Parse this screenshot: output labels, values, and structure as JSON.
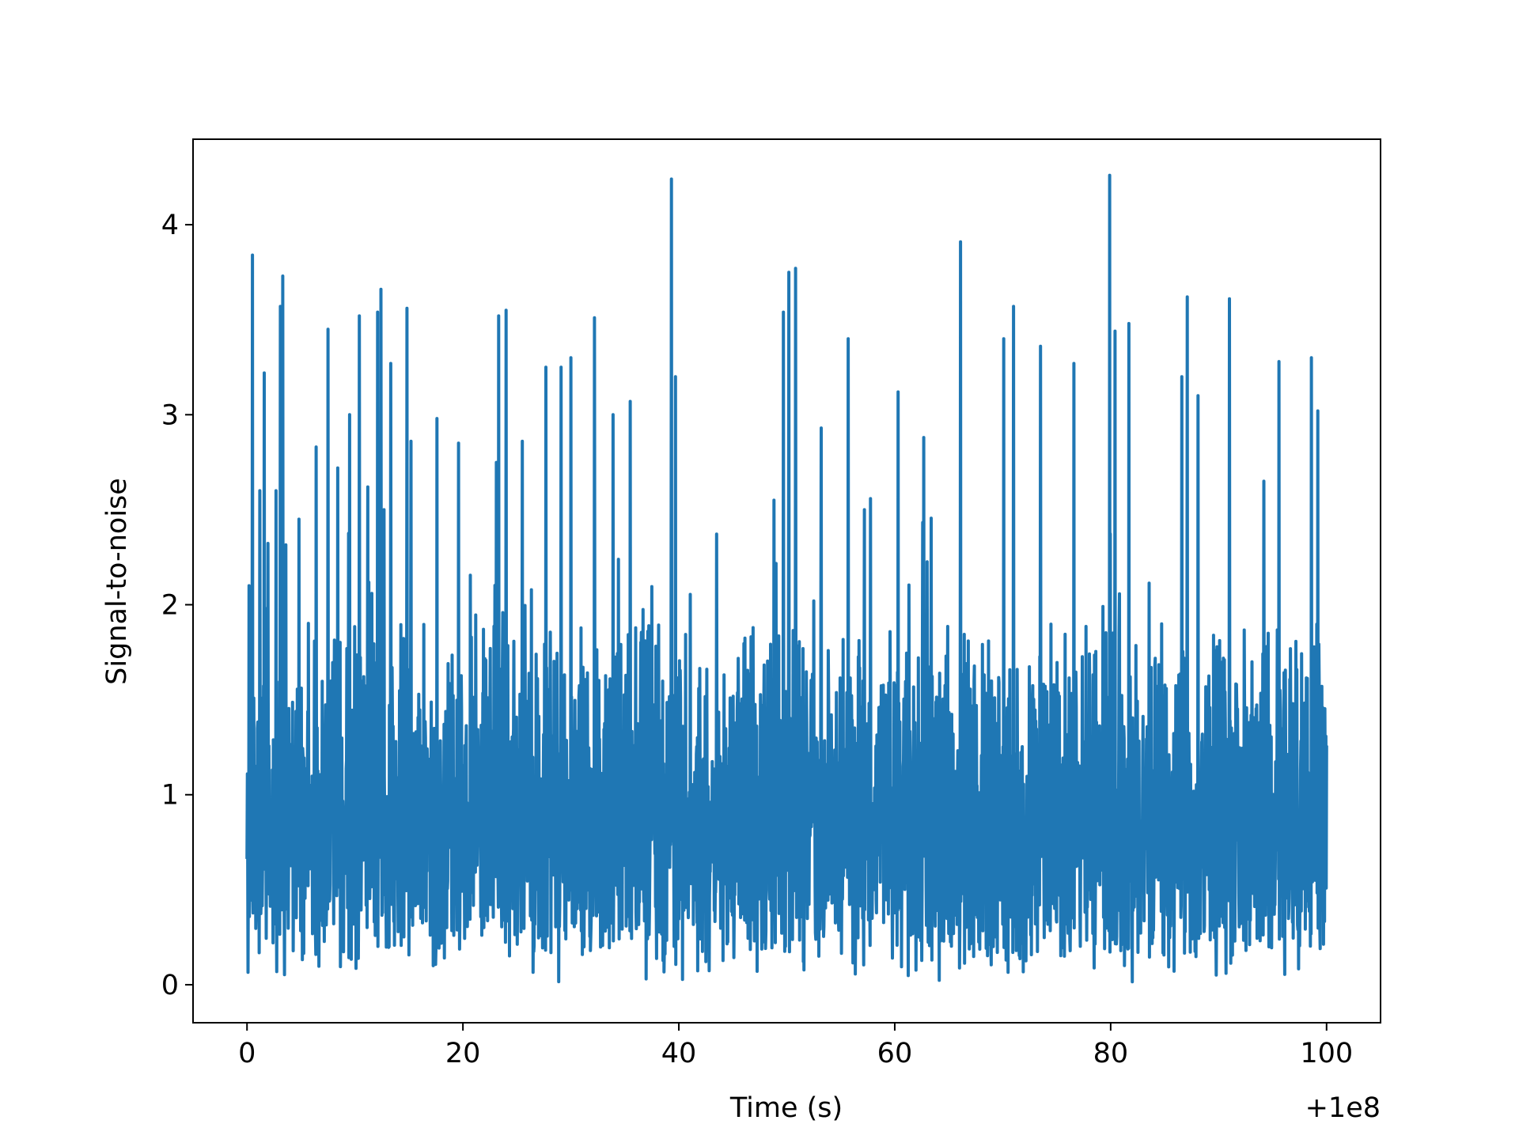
{
  "chart_data": {
    "type": "line",
    "title": "",
    "xlabel": "Time (s)",
    "ylabel": "Signal-to-noise",
    "x_offset_label": "+1e8",
    "xlim": [
      -5,
      105
    ],
    "ylim": [
      -0.2,
      4.45
    ],
    "x_ticks": [
      0,
      20,
      40,
      60,
      80,
      100
    ],
    "y_ticks": [
      0,
      1,
      2,
      3,
      4
    ],
    "grid": false,
    "legend": "none",
    "series": [
      {
        "color": "#1f77b4",
        "noise_floor": 0.0,
        "noise_typical_max": 1.9,
        "x": [
          0.2,
          0.5,
          1.2,
          1.6,
          2.7,
          3.1,
          3.3,
          4.8,
          6.4,
          7.5,
          8.4,
          9.5,
          10.4,
          11.2,
          12.1,
          12.4,
          12.7,
          13.3,
          14.8,
          15.2,
          17.6,
          19.6,
          23.3,
          24.0,
          25.5,
          27.7,
          29.1,
          30.0,
          32.2,
          33.9,
          35.5,
          39.3,
          39.7,
          48.8,
          49.7,
          50.2,
          50.8,
          53.2,
          55.7,
          57.2,
          60.3,
          62.7,
          66.1,
          70.1,
          71.0,
          73.5,
          76.6,
          79.9,
          80.4,
          81.7,
          86.6,
          87.1,
          88.1,
          91.0,
          94.2,
          95.6,
          98.6,
          99.2
        ],
        "y": [
          2.1,
          3.84,
          2.6,
          3.22,
          2.6,
          3.57,
          3.73,
          2.45,
          2.83,
          3.45,
          2.72,
          3.0,
          3.52,
          2.62,
          3.54,
          3.66,
          2.5,
          3.27,
          3.56,
          2.86,
          2.98,
          2.85,
          3.52,
          3.55,
          2.86,
          3.25,
          3.25,
          3.3,
          3.51,
          3.0,
          3.07,
          4.24,
          3.2,
          2.55,
          3.54,
          3.75,
          3.77,
          2.93,
          3.4,
          2.5,
          3.12,
          2.88,
          3.91,
          3.4,
          3.57,
          3.36,
          3.27,
          4.26,
          3.44,
          3.48,
          3.2,
          3.62,
          3.1,
          3.61,
          2.65,
          3.28,
          3.3,
          3.02
        ]
      }
    ]
  }
}
